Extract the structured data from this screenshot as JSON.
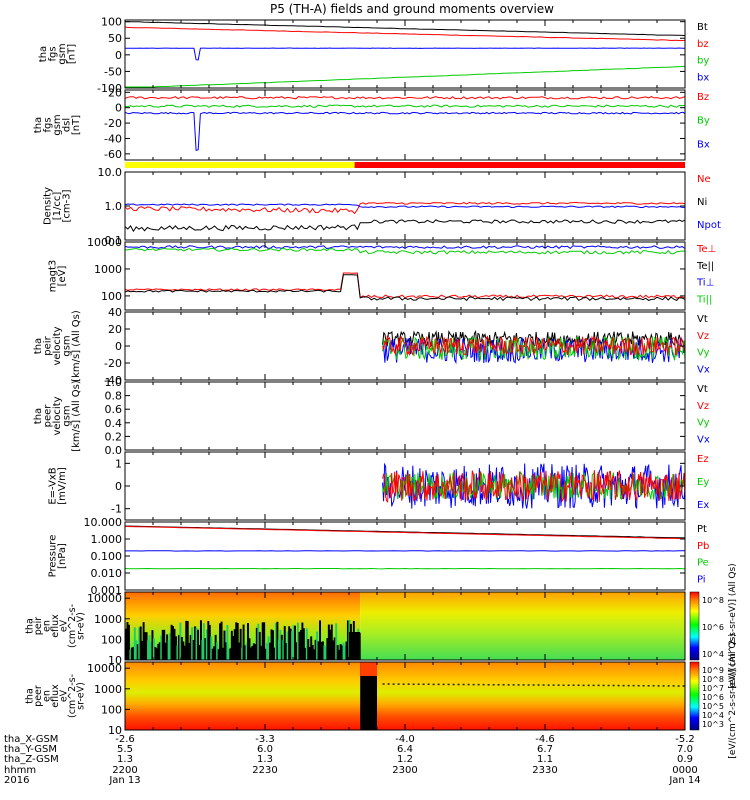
{
  "chart_data": {
    "type": "line",
    "title": "P5 (TH-A) fields and ground moments overview",
    "panels": [
      {
        "id": "fgs-gsm",
        "ylabel_lines": [
          "tha",
          "fgs",
          "gsm",
          "[nT]"
        ],
        "y_ticks": [
          100,
          50,
          0,
          -50,
          -100
        ],
        "ylim": [
          -100,
          105
        ],
        "legend": [
          {
            "label": "Bt",
            "color": "#000000"
          },
          {
            "label": "bz",
            "color": "#ff0000"
          },
          {
            "label": "by",
            "color": "#00cc00"
          },
          {
            "label": "bx",
            "color": "#0000ff"
          }
        ]
      },
      {
        "id": "fgs-dsl",
        "ylabel_lines": [
          "tha",
          "fgs",
          "gsm",
          "dsl",
          "[nT]"
        ],
        "y_ticks": [
          20,
          0,
          -20,
          -40,
          -60
        ],
        "ylim": [
          -68,
          23
        ],
        "legend": [
          {
            "label": "Bz",
            "color": "#ff0000"
          },
          {
            "label": "By",
            "color": "#00cc00"
          },
          {
            "label": "Bx",
            "color": "#0000ff"
          }
        ]
      },
      {
        "id": "mode-bar",
        "segments": [
          {
            "from": 0,
            "to": 0.41,
            "color": "#ffff00"
          },
          {
            "from": 0.41,
            "to": 1.0,
            "color": "#ff0000"
          }
        ]
      },
      {
        "id": "density",
        "ylabel_lines": [
          "Density",
          "[1/cc]",
          "[cm-3]"
        ],
        "y_ticks": [
          "10.0",
          "1.0",
          "0.1"
        ],
        "log": true,
        "ylim": [
          0.1,
          10
        ],
        "legend": [
          {
            "label": "Ne",
            "color": "#ff0000"
          },
          {
            "label": "Ni",
            "color": "#000000"
          },
          {
            "label": "Npot",
            "color": "#0000ff"
          }
        ]
      },
      {
        "id": "temperature",
        "ylabel_lines": [
          "magt3",
          "[eV]"
        ],
        "y_ticks": [
          "10000",
          "1000",
          "100"
        ],
        "log": true,
        "ylim": [
          30,
          10000
        ],
        "legend": [
          {
            "label": "Te⊥",
            "color": "#ff0000"
          },
          {
            "label": "Te||",
            "color": "#000000"
          },
          {
            "label": "Ti⊥",
            "color": "#0000ff"
          },
          {
            "label": "Ti||",
            "color": "#00cc00"
          }
        ]
      },
      {
        "id": "peir-velocity",
        "ylabel_lines": [
          "tha",
          "peir",
          "velocity",
          "gsm",
          "[km/s] (All Qs)"
        ],
        "y_ticks": [
          40,
          20,
          0,
          -20,
          -40
        ],
        "ylim": [
          -40,
          40
        ],
        "legend": [
          {
            "label": "Vt",
            "color": "#000000"
          },
          {
            "label": "Vz",
            "color": "#ff0000"
          },
          {
            "label": "Vy",
            "color": "#00cc00"
          },
          {
            "label": "Vx",
            "color": "#0000ff"
          }
        ]
      },
      {
        "id": "peer-velocity",
        "ylabel_lines": [
          "tha",
          "peer",
          "velocity",
          "gsm",
          "[km/s] (All Qs)"
        ],
        "y_ticks": [
          "1.0",
          "0.8",
          "0.6",
          "0.4",
          "0.2",
          "0.0"
        ],
        "ylim": [
          0,
          1
        ],
        "legend": [
          {
            "label": "Vt",
            "color": "#000000"
          },
          {
            "label": "Vz",
            "color": "#ff0000"
          },
          {
            "label": "Vy",
            "color": "#00cc00"
          },
          {
            "label": "Vx",
            "color": "#0000ff"
          }
        ]
      },
      {
        "id": "efield",
        "ylabel_lines": [
          "E=-VxB",
          "[mV/m]"
        ],
        "y_ticks": [
          1,
          0,
          -1
        ],
        "ylim": [
          -1.5,
          1.5
        ],
        "legend": [
          {
            "label": "Ez",
            "color": "#ff0000"
          },
          {
            "label": "Ey",
            "color": "#00cc00"
          },
          {
            "label": "Ex",
            "color": "#0000ff"
          }
        ]
      },
      {
        "id": "pressure",
        "ylabel_lines": [
          "Pressure",
          "[nPa]"
        ],
        "y_ticks": [
          "10.000",
          "1.000",
          "0.100",
          "0.010",
          "0.001"
        ],
        "log": true,
        "ylim": [
          0.001,
          10
        ],
        "legend": [
          {
            "label": "Pt",
            "color": "#000000"
          },
          {
            "label": "Pb",
            "color": "#ff0000"
          },
          {
            "label": "Pe",
            "color": "#00cc00"
          },
          {
            "label": "Pi",
            "color": "#0000ff"
          }
        ]
      },
      {
        "id": "peir-spectrogram",
        "type": "heatmap",
        "ylabel_lines": [
          "tha",
          "peir",
          "en",
          "eflux",
          "eV",
          "(cm^2-s-",
          "sr-eV)"
        ],
        "y_ticks": [
          "10000",
          "1000",
          "100",
          "10"
        ],
        "colorbar_ticks": [
          "10^8",
          "10^6",
          "10^4"
        ],
        "colorbar_label": "[eV/(cm^2-s-sr-eV)] (All Qs)"
      },
      {
        "id": "peer-spectrogram",
        "type": "heatmap",
        "ylabel_lines": [
          "tha",
          "peer",
          "en",
          "eflux",
          "eV",
          "(cm^2-s-",
          "sr-eV)"
        ],
        "y_ticks": [
          "10000",
          "1000",
          "100",
          "10"
        ],
        "colorbar_ticks": [
          "10^9",
          "10^8",
          "10^7",
          "10^6",
          "10^5",
          "10^4",
          "10^3"
        ],
        "colorbar_label": "[eV/(cm^2-s-sr-eV)] (All Qs)"
      }
    ],
    "x_axis": {
      "row_labels": [
        "tha_X-GSM",
        "tha_Y-GSM",
        "tha_Z-GSM",
        "hhmm",
        "2016"
      ],
      "ticks": [
        {
          "values": [
            "-2.6",
            "5.5",
            "1.3",
            "2200",
            "Jan 13"
          ]
        },
        {
          "values": [
            "-3.3",
            "6.0",
            "1.3",
            "2230",
            ""
          ]
        },
        {
          "values": [
            "-4.0",
            "6.4",
            "1.2",
            "2300",
            ""
          ]
        },
        {
          "values": [
            "-4.6",
            "6.7",
            "1.1",
            "2330",
            ""
          ]
        },
        {
          "values": [
            "-5.2",
            "7.0",
            "0.9",
            "0000",
            "Jan 14"
          ]
        }
      ]
    }
  }
}
